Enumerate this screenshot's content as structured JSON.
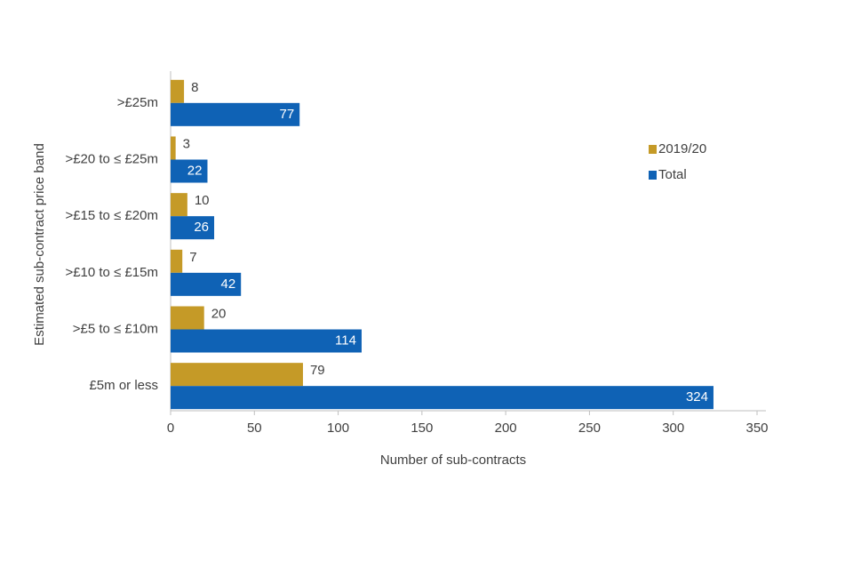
{
  "chart_data": {
    "type": "bar",
    "orientation": "horizontal",
    "x_label": "Number of sub-contracts",
    "y_label": "Estimated sub-contract price band",
    "categories": [
      ">£25m",
      ">£20 to ≤ £25m",
      ">£15 to ≤ £20m",
      ">£10 to ≤ £15m",
      ">£5 to ≤ £10m",
      "£5m or less"
    ],
    "series": [
      {
        "name": "2019/20",
        "color": "#c59a27",
        "values": [
          8,
          3,
          10,
          7,
          20,
          79
        ]
      },
      {
        "name": "Total",
        "color": "#0f62b5",
        "values": [
          77,
          22,
          26,
          42,
          114,
          324
        ]
      }
    ],
    "xlim": [
      0,
      350
    ],
    "xticks": [
      0,
      50,
      100,
      150,
      200,
      250,
      300,
      350
    ],
    "grid": false,
    "legend_position": "right"
  }
}
